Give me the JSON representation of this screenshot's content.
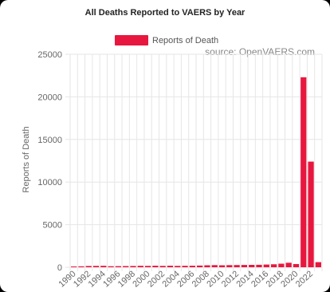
{
  "chart_data": {
    "type": "bar",
    "title": "All Deaths Reported to VAERS by Year",
    "source_note": "source: OpenVAERS.com",
    "legend": {
      "position": "top",
      "entries": [
        "Reports of Death"
      ]
    },
    "xlabel": "",
    "ylabel": "Reports of Death",
    "ylim": [
      0,
      25000
    ],
    "yticks": [
      0,
      5000,
      10000,
      15000,
      20000,
      25000
    ],
    "grid": true,
    "bar_color": "#e8173f",
    "categories": [
      "1990",
      "1991",
      "1992",
      "1993",
      "1994",
      "1995",
      "1996",
      "1997",
      "1998",
      "1999",
      "2000",
      "2001",
      "2002",
      "2003",
      "2004",
      "2005",
      "2006",
      "2007",
      "2008",
      "2009",
      "2010",
      "2011",
      "2012",
      "2013",
      "2014",
      "2015",
      "2016",
      "2017",
      "2018",
      "2019",
      "2020",
      "2021",
      "2022",
      "2023"
    ],
    "xtick_labels": [
      "1990",
      "1992",
      "1994",
      "1996",
      "1998",
      "2000",
      "2002",
      "2004",
      "2006",
      "2008",
      "2010",
      "2012",
      "2014",
      "2016",
      "2018",
      "2020",
      "2022"
    ],
    "series": [
      {
        "name": "Reports of Death",
        "values": [
          60,
          110,
          150,
          160,
          170,
          120,
          130,
          140,
          150,
          170,
          160,
          180,
          160,
          180,
          160,
          170,
          180,
          200,
          230,
          250,
          230,
          250,
          260,
          270,
          280,
          290,
          320,
          350,
          420,
          530,
          380,
          22300,
          12400,
          600
        ]
      }
    ]
  }
}
